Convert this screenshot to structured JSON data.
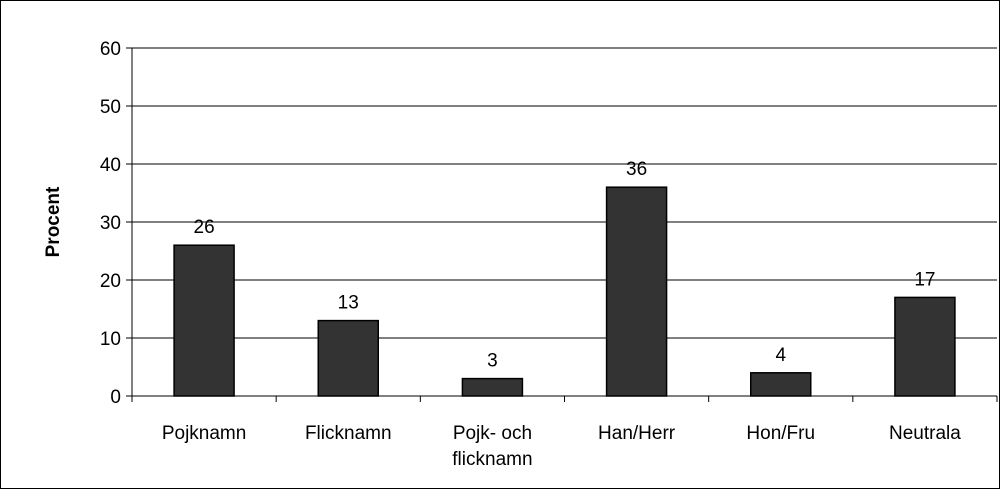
{
  "chart_data": {
    "type": "bar",
    "categories": [
      [
        "Pojknamn"
      ],
      [
        "Flicknamn"
      ],
      [
        "Pojk- och",
        "flicknamn"
      ],
      [
        "Han/Herr"
      ],
      [
        "Hon/Fru"
      ],
      [
        "Neutrala"
      ]
    ],
    "values": [
      26,
      13,
      3,
      36,
      4,
      17
    ],
    "data_labels": [
      "26",
      "13",
      "3",
      "36",
      "4",
      "17"
    ],
    "ylabel": "Procent",
    "xlabel": "",
    "title": "",
    "ylim": [
      0,
      60
    ],
    "yticks": [
      0,
      10,
      20,
      30,
      40,
      50,
      60
    ],
    "grid": "horizontal",
    "legend": "none",
    "colors": {
      "bar": "#333333",
      "bar_stroke": "#000000",
      "grid": "#000000"
    }
  }
}
